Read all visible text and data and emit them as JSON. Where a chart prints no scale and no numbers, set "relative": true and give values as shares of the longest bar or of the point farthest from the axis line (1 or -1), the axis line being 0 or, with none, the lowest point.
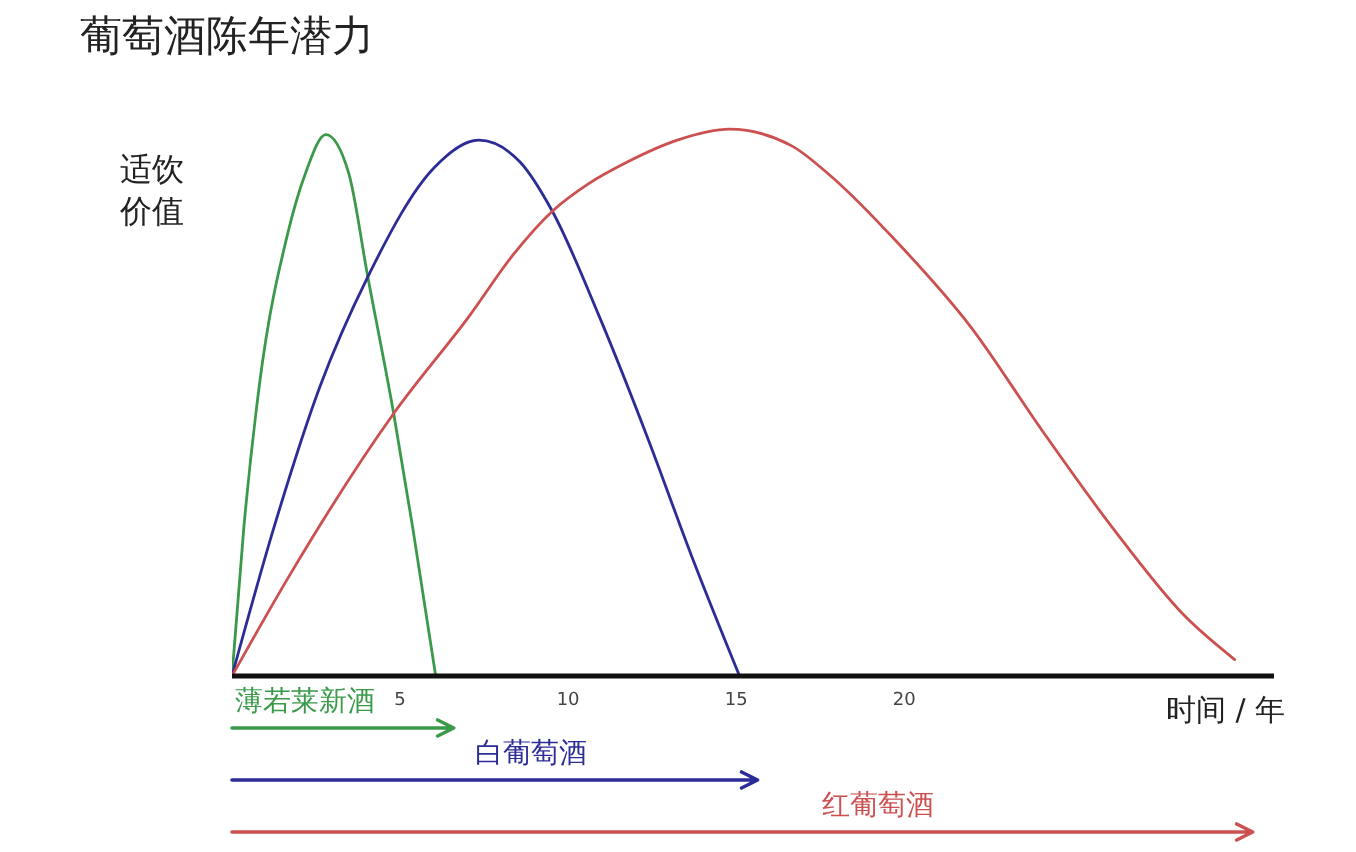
{
  "chart_data": {
    "type": "line",
    "title": "葡萄酒陈年潜力",
    "xlabel": "时间 / 年",
    "ylabel": "适饮价值",
    "relative": true,
    "xlim": [
      0,
      31
    ],
    "xticks": [
      5,
      10,
      15,
      20
    ],
    "legend": "bottom",
    "line_style": "solid",
    "series": [
      {
        "name": "薄若莱新酒",
        "color": "#3a9a4a",
        "x": [
          0,
          0.35,
          0.81,
          1.66,
          2.19,
          2.79,
          3.47,
          4.04,
          4.81,
          5.38,
          6.06
        ],
        "values": [
          0,
          0.27,
          0.53,
          0.81,
          0.92,
          0.99,
          0.92,
          0.73,
          0.48,
          0.27,
          0
        ]
      },
      {
        "name": "白葡萄酒",
        "color": "#2c2c96",
        "x": [
          0,
          1.24,
          2.62,
          4.04,
          6.02,
          7.34,
          8.57,
          9.53,
          10.91,
          12.4,
          13.67,
          15.1
        ],
        "values": [
          0,
          0.27,
          0.53,
          0.73,
          0.93,
          0.98,
          0.94,
          0.85,
          0.66,
          0.43,
          0.22,
          0
        ]
      },
      {
        "name": "红葡萄酒",
        "color": "#cc5050",
        "x": [
          0,
          1.77,
          4.81,
          7.08,
          8.36,
          9.53,
          10.6,
          11.76,
          13.25,
          14.8,
          16.64,
          17.71,
          19.84,
          21.96,
          24.09,
          26.21,
          28.34,
          29.83
        ],
        "values": [
          0,
          0.19,
          0.48,
          0.66,
          0.77,
          0.85,
          0.9,
          0.94,
          0.98,
          1,
          0.97,
          0.92,
          0.79,
          0.64,
          0.45,
          0.27,
          0.11,
          0.03
        ]
      }
    ]
  }
}
